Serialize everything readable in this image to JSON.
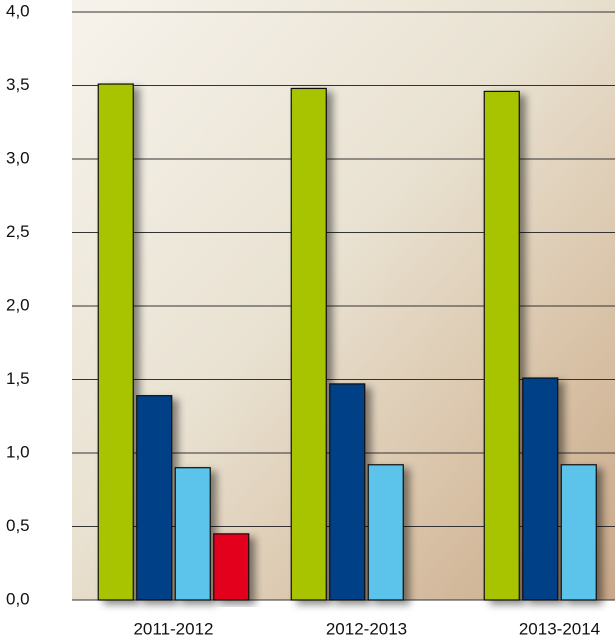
{
  "chart_data": {
    "type": "bar",
    "categories": [
      "2011-2012",
      "2012-2013",
      "2013-2014"
    ],
    "series": [
      {
        "color": "#a8c400",
        "values": [
          3.51,
          3.48,
          3.46
        ]
      },
      {
        "color": "#003f87",
        "values": [
          1.39,
          1.47,
          1.51
        ]
      },
      {
        "color": "#5bc3ea",
        "values": [
          0.9,
          0.92,
          0.92
        ]
      },
      {
        "color": "#e2001a",
        "values": [
          0.45,
          null,
          null
        ]
      }
    ],
    "ylim": [
      0,
      4
    ],
    "yticks": [
      {
        "value": 0,
        "label": "0,0"
      },
      {
        "value": 0.5,
        "label": "0,5"
      },
      {
        "value": 1,
        "label": "1,0"
      },
      {
        "value": 1.5,
        "label": "1,5"
      },
      {
        "value": 2,
        "label": "2,0"
      },
      {
        "value": 2.5,
        "label": "2,5"
      },
      {
        "value": 3,
        "label": "3,0"
      },
      {
        "value": 3.5,
        "label": "3,5"
      },
      {
        "value": 4,
        "label": "4,0"
      }
    ],
    "grid": true
  }
}
